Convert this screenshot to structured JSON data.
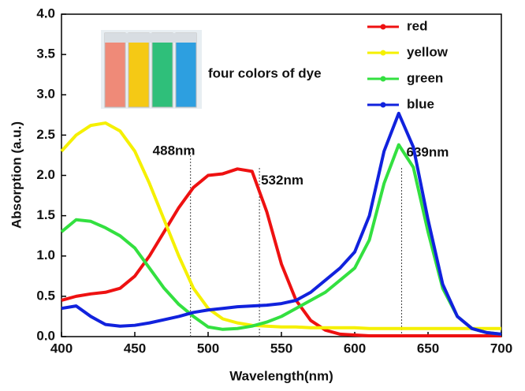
{
  "chart_data": {
    "type": "line",
    "x_label": "Wavelength(nm)",
    "y_label": "Absorption (a.u.)",
    "inset_caption": "four colors of dye",
    "x": [
      400,
      410,
      420,
      430,
      440,
      450,
      460,
      470,
      480,
      490,
      500,
      510,
      520,
      530,
      540,
      550,
      560,
      570,
      580,
      590,
      600,
      610,
      620,
      630,
      640,
      650,
      660,
      670,
      680,
      690,
      700
    ],
    "series": [
      {
        "name": "red",
        "color": "#ee1111",
        "values": [
          0.45,
          0.5,
          0.53,
          0.55,
          0.6,
          0.75,
          1.0,
          1.3,
          1.6,
          1.85,
          2.0,
          2.02,
          2.08,
          2.05,
          1.55,
          0.9,
          0.45,
          0.2,
          0.08,
          0.03,
          0.02,
          0.01,
          0.01,
          0.01,
          0.01,
          0.01,
          0.01,
          0.01,
          0.01,
          0.01,
          0.01
        ]
      },
      {
        "name": "yellow",
        "color": "#f5f000",
        "values": [
          2.3,
          2.5,
          2.62,
          2.65,
          2.55,
          2.3,
          1.9,
          1.45,
          1.0,
          0.6,
          0.35,
          0.22,
          0.17,
          0.14,
          0.13,
          0.12,
          0.12,
          0.11,
          0.11,
          0.11,
          0.11,
          0.1,
          0.1,
          0.1,
          0.1,
          0.1,
          0.1,
          0.1,
          0.1,
          0.1,
          0.1
        ]
      },
      {
        "name": "green",
        "color": "#33e040",
        "values": [
          1.3,
          1.45,
          1.43,
          1.35,
          1.25,
          1.1,
          0.85,
          0.6,
          0.4,
          0.25,
          0.12,
          0.09,
          0.1,
          0.13,
          0.18,
          0.25,
          0.35,
          0.45,
          0.55,
          0.7,
          0.85,
          1.2,
          1.9,
          2.38,
          2.1,
          1.3,
          0.6,
          0.25,
          0.1,
          0.05,
          0.03
        ]
      },
      {
        "name": "blue",
        "color": "#1122dd",
        "values": [
          0.35,
          0.38,
          0.25,
          0.15,
          0.13,
          0.14,
          0.17,
          0.21,
          0.25,
          0.3,
          0.33,
          0.35,
          0.37,
          0.38,
          0.39,
          0.41,
          0.45,
          0.55,
          0.7,
          0.85,
          1.05,
          1.5,
          2.3,
          2.77,
          2.35,
          1.45,
          0.65,
          0.25,
          0.1,
          0.05,
          0.03
        ]
      }
    ],
    "annotations": [
      {
        "text": "488nm",
        "x": 488
      },
      {
        "text": "532nm",
        "x": 535
      },
      {
        "text": "639nm",
        "x": 632
      }
    ],
    "xlim": [
      400,
      700
    ],
    "xticks": [
      400,
      450,
      500,
      550,
      600,
      650,
      700
    ],
    "ylim": [
      0,
      4
    ],
    "yticks": [
      {
        "value": 0,
        "label": "0.0"
      },
      {
        "value": 0.5,
        "label": "0.5"
      },
      {
        "value": 1,
        "label": "1.0"
      },
      {
        "value": 1.5,
        "label": "1.5"
      },
      {
        "value": 2,
        "label": "2.0"
      },
      {
        "value": 2.5,
        "label": "2.5"
      },
      {
        "value": 3,
        "label": "3.0"
      },
      {
        "value": 3.5,
        "label": "3.5"
      },
      {
        "value": 4,
        "label": "4.0"
      }
    ],
    "legend": "top-right"
  }
}
